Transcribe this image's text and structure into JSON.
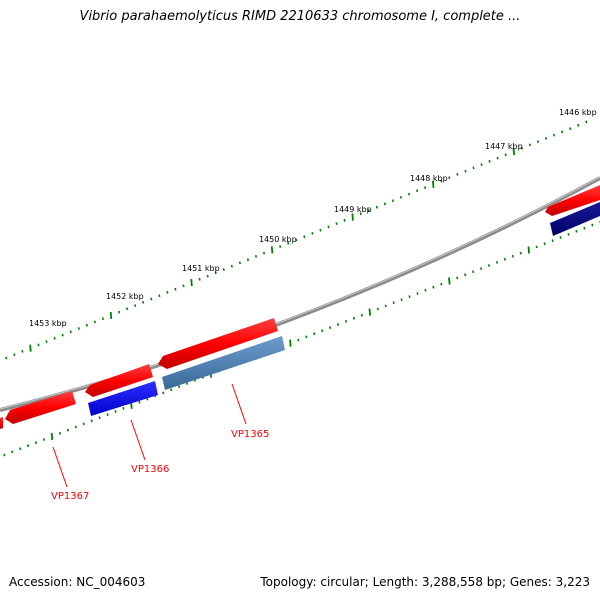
{
  "title": "Vibrio parahaemolyticus RIMD 2210633 chromosome I, complete ...",
  "footer": {
    "accession": "Accession: NC_004603",
    "stats": "Topology: circular; Length: 3,288,558 bp; Genes: 3,223"
  },
  "scale": {
    "unit": "kbp",
    "labels": [
      "1446 kbp",
      "1447 kbp",
      "1448 kbp",
      "1449 kbp",
      "1450 kbp",
      "1451 kbp",
      "1452 kbp",
      "1453 kbp"
    ]
  },
  "genes": [
    {
      "name": "VP1365"
    },
    {
      "name": "VP1366"
    },
    {
      "name": "VP1367"
    }
  ],
  "colors": {
    "backbone": "#808080",
    "forward_gene": "#ff0000",
    "cds_blue": "#0000ff",
    "cds_steelblue": "#4a7fb4",
    "cds_navy": "#000080",
    "tick_green": "#008000",
    "label_red": "#ff0000"
  }
}
